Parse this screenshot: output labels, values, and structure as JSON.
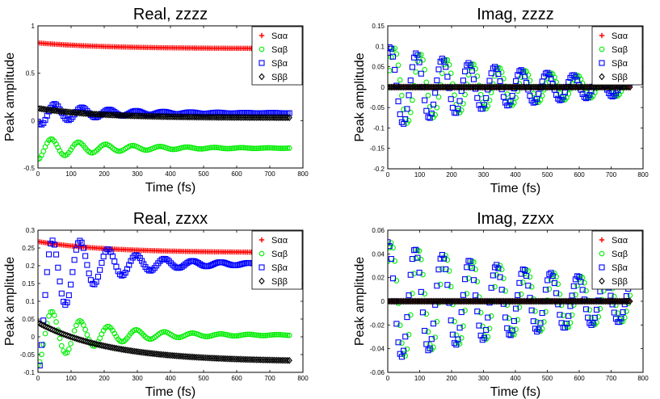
{
  "figure": {
    "layout": "2x2 grid of line/marker plots"
  },
  "chart_data": [
    {
      "id": "real-zzzz",
      "type": "line",
      "title": "Real, zzzz",
      "xlabel": "Time (fs)",
      "ylabel": "Peak amplitude",
      "xlim": [
        0,
        800
      ],
      "ylim": [
        -0.5,
        1
      ],
      "xticks": [
        0,
        100,
        200,
        300,
        400,
        500,
        600,
        700,
        800
      ],
      "yticks": [
        -0.5,
        0,
        0.5,
        1
      ],
      "yticklabels": [
        "-0.5",
        "0",
        "0.5",
        "1"
      ],
      "legend_position": "top-right",
      "series": [
        {
          "name": "Sαα",
          "marker": "+",
          "color": "#ff0000",
          "model": {
            "type": "decay",
            "base": 0.76,
            "amp": 0.06,
            "tau": 200
          }
        },
        {
          "name": "Sαβ",
          "marker": "o",
          "color": "#00ee00",
          "model": {
            "type": "osc",
            "base": -0.29,
            "amp": 0.12,
            "tau": 190,
            "period": 82,
            "phase": 3.14159
          }
        },
        {
          "name": "Sβα",
          "marker": "s",
          "color": "#0000ff",
          "model": {
            "type": "osc",
            "base": 0.08,
            "amp": -0.13,
            "tau": 170,
            "period": 82,
            "phase": -0.8,
            "drift": 0.0
          }
        },
        {
          "name": "Sββ",
          "marker": "d",
          "color": "#000000",
          "model": {
            "type": "decay",
            "base": 0.03,
            "amp": 0.1,
            "tau": 180
          }
        }
      ]
    },
    {
      "id": "imag-zzzz",
      "type": "line",
      "title": "Imag, zzzz",
      "xlabel": "Time (fs)",
      "ylabel": "Peak amplitude",
      "xlim": [
        0,
        800
      ],
      "ylim": [
        -0.2,
        0.15
      ],
      "xticks": [
        0,
        100,
        200,
        300,
        400,
        500,
        600,
        700,
        800
      ],
      "yticks": [
        -0.2,
        -0.15,
        -0.1,
        -0.05,
        0,
        0.05,
        0.1,
        0.15
      ],
      "yticklabels": [
        "-0.2",
        "-0.15",
        "-0.1",
        "-0.05",
        "0",
        "0.05",
        "0.1",
        "0.15"
      ],
      "legend_position": "top-right",
      "series": [
        {
          "name": "Sαα",
          "marker": "+",
          "color": "#ff0000",
          "model": {
            "type": "const",
            "base": 0
          }
        },
        {
          "name": "Sαβ",
          "marker": "o",
          "color": "#00ee00",
          "model": {
            "type": "osc",
            "base": 0,
            "amp": -0.1,
            "tau": 480,
            "period": 82,
            "phase": 1.5708
          }
        },
        {
          "name": "Sβα",
          "marker": "s",
          "color": "#0000ff",
          "model": {
            "type": "osc",
            "base": 0,
            "amp": 0.1,
            "tau": 480,
            "period": 82,
            "phase": 1.5708,
            "shift": 28
          }
        },
        {
          "name": "Sββ",
          "marker": "d",
          "color": "#000000",
          "model": {
            "type": "const",
            "base": 0
          }
        }
      ]
    },
    {
      "id": "real-zzxx",
      "type": "line",
      "title": "Real, zzxx",
      "xlabel": "Time (fs)",
      "ylabel": "Peak amplitude",
      "xlim": [
        0,
        800
      ],
      "ylim": [
        -0.1,
        0.3
      ],
      "xticks": [
        0,
        100,
        200,
        300,
        400,
        500,
        600,
        700,
        800
      ],
      "yticks": [
        -0.1,
        -0.05,
        0,
        0.05,
        0.1,
        0.15,
        0.2,
        0.25,
        0.3
      ],
      "yticklabels": [
        "-0.1",
        "-0.05",
        "0",
        "0.05",
        "0.1",
        "0.15",
        "0.2",
        "0.25",
        "0.3"
      ],
      "legend_position": "top-right",
      "series": [
        {
          "name": "Sαα",
          "marker": "+",
          "color": "#ff0000",
          "model": {
            "type": "decay",
            "base": 0.237,
            "amp": 0.031,
            "tau": 200
          }
        },
        {
          "name": "Sαβ",
          "marker": "o",
          "color": "#00ee00",
          "model": {
            "type": "osc",
            "base": 0.005,
            "amp": -0.085,
            "tau": 170,
            "period": 85,
            "phase": 0
          }
        },
        {
          "name": "Sβα",
          "marker": "s",
          "color": "#0000ff",
          "model": {
            "type": "osc",
            "base": 0.205,
            "amp": -0.16,
            "tau": 160,
            "period": 85,
            "phase": 0,
            "rise": 40
          }
        },
        {
          "name": "Sββ",
          "marker": "d",
          "color": "#000000",
          "model": {
            "type": "decay",
            "base": -0.07,
            "amp": 0.11,
            "tau": 220
          }
        }
      ]
    },
    {
      "id": "imag-zzxx",
      "type": "line",
      "title": "Imag, zzxx",
      "xlabel": "Time (fs)",
      "ylabel": "Peak amplitude",
      "xlim": [
        0,
        800
      ],
      "ylim": [
        -0.06,
        0.06
      ],
      "xticks": [
        0,
        100,
        200,
        300,
        400,
        500,
        600,
        700,
        800
      ],
      "yticks": [
        -0.06,
        -0.04,
        -0.02,
        0,
        0.02,
        0.04,
        0.06
      ],
      "yticklabels": [
        "-0.06",
        "-0.04",
        "-0.02",
        "0",
        "0.02",
        "0.04",
        "0.06"
      ],
      "legend_position": "top-right",
      "series": [
        {
          "name": "Sαα",
          "marker": "+",
          "color": "#ff0000",
          "model": {
            "type": "const",
            "base": 0
          }
        },
        {
          "name": "Sαβ",
          "marker": "o",
          "color": "#00ee00",
          "model": {
            "type": "osc",
            "base": 0,
            "amp": -0.05,
            "tau": 700,
            "period": 85,
            "phase": 1.5708,
            "shift": -10
          }
        },
        {
          "name": "Sβα",
          "marker": "s",
          "color": "#0000ff",
          "model": {
            "type": "osc",
            "base": 0,
            "amp": 0.05,
            "tau": 700,
            "period": 85,
            "phase": 1.5708,
            "shift": 22
          }
        },
        {
          "name": "Sββ",
          "marker": "d",
          "color": "#000000",
          "model": {
            "type": "const",
            "base": 0
          }
        }
      ]
    }
  ]
}
